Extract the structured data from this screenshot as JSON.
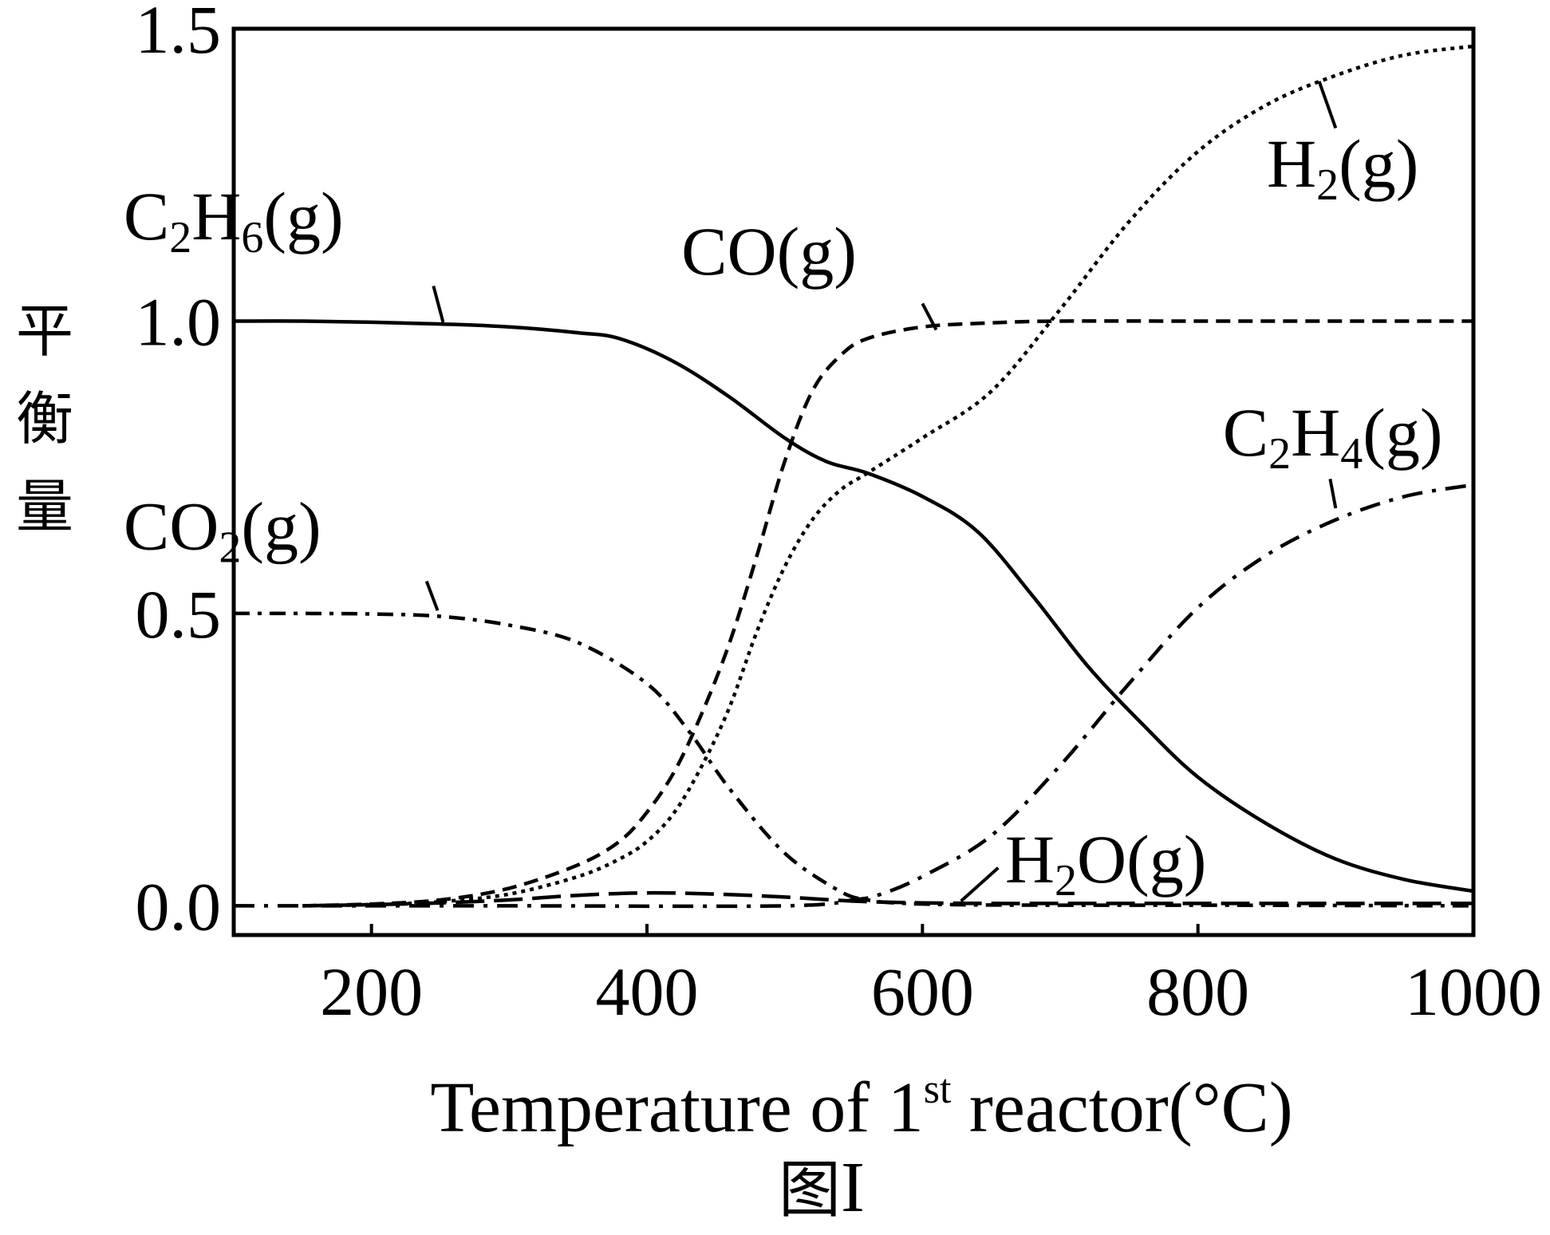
{
  "chart_data": {
    "type": "line",
    "xlabel": {
      "pre": "Temperature of 1",
      "sup": "st",
      "post": " reactor(°C)"
    },
    "ylabel": [
      "平",
      "衡",
      "量"
    ],
    "caption": {
      "han": "图",
      "roman": "I"
    },
    "xlim": [
      100,
      1000
    ],
    "ylim": [
      -0.05,
      1.5
    ],
    "xticks": [
      200,
      400,
      600,
      800,
      1000
    ],
    "yticks": [
      0.0,
      0.5,
      1.0,
      1.5
    ],
    "xtick_labels": [
      "200",
      "400",
      "600",
      "800",
      "1000"
    ],
    "ytick_labels": [
      "0.0",
      "0.5",
      "1.0",
      "1.5"
    ],
    "grid": false,
    "series": [
      {
        "name": "C₂H₆(g)",
        "label_parts": [
          [
            "C",
            ""
          ],
          [
            "2",
            "sub"
          ],
          [
            "H",
            ""
          ],
          [
            "6",
            "sub"
          ],
          [
            "(g)",
            ""
          ]
        ],
        "style": "solid",
        "label_anchor": [
          20,
          1.14
        ],
        "leader": [
          [
            245,
            1.06
          ],
          [
            252,
            0.998
          ]
        ],
        "x": [
          100,
          150,
          200,
          250,
          300,
          350,
          380,
          420,
          460,
          500,
          530,
          560,
          600,
          640,
          680,
          720,
          760,
          800,
          850,
          900,
          950,
          1000
        ],
        "y": [
          1.0,
          1.0,
          0.998,
          0.995,
          0.99,
          0.98,
          0.97,
          0.93,
          0.87,
          0.8,
          0.76,
          0.74,
          0.7,
          0.64,
          0.53,
          0.41,
          0.31,
          0.22,
          0.14,
          0.08,
          0.045,
          0.025
        ]
      },
      {
        "name": "CO(g)",
        "label_parts": [
          [
            "CO(g)",
            ""
          ]
        ],
        "style": "dashed",
        "label_anchor": [
          425,
          1.08
        ],
        "leader": [
          [
            600,
            1.03
          ],
          [
            610,
            0.985
          ]
        ],
        "x": [
          150,
          200,
          250,
          300,
          350,
          380,
          400,
          420,
          440,
          460,
          480,
          500,
          520,
          540,
          560,
          600,
          650,
          700,
          800,
          900,
          1000
        ],
        "y": [
          0.0,
          0.003,
          0.01,
          0.03,
          0.07,
          0.11,
          0.16,
          0.23,
          0.33,
          0.45,
          0.6,
          0.76,
          0.88,
          0.94,
          0.97,
          0.99,
          0.997,
          1.0,
          1.0,
          1.0,
          1.0
        ]
      },
      {
        "name": "H₂(g)",
        "label_parts": [
          [
            "H",
            ""
          ],
          [
            "2",
            "sub"
          ],
          [
            "(g)",
            ""
          ]
        ],
        "style": "dotted",
        "label_anchor": [
          850,
          1.23
        ],
        "leader": [
          [
            900,
            1.33
          ],
          [
            888,
            1.41
          ]
        ],
        "x": [
          150,
          200,
          250,
          300,
          350,
          380,
          400,
          420,
          440,
          460,
          480,
          500,
          520,
          540,
          560,
          600,
          650,
          700,
          750,
          800,
          850,
          900,
          950,
          1000
        ],
        "y": [
          0.0,
          0.002,
          0.007,
          0.02,
          0.05,
          0.08,
          0.11,
          0.16,
          0.24,
          0.34,
          0.47,
          0.58,
          0.66,
          0.71,
          0.74,
          0.8,
          0.88,
          1.02,
          1.17,
          1.29,
          1.37,
          1.42,
          1.455,
          1.47
        ]
      },
      {
        "name": "C₂H₄(g)",
        "label_parts": [
          [
            "C",
            ""
          ],
          [
            "2",
            "sub"
          ],
          [
            "H",
            ""
          ],
          [
            "4",
            "sub"
          ],
          [
            "(g)",
            ""
          ]
        ],
        "style": "dashdot",
        "label_anchor": [
          818,
          0.77
        ],
        "leader": [
          [
            896,
            0.73
          ],
          [
            900,
            0.68
          ]
        ],
        "x": [
          100,
          300,
          500,
          550,
          570,
          600,
          650,
          700,
          750,
          800,
          850,
          900,
          950,
          1000
        ],
        "y": [
          0.0,
          0.0,
          0.0,
          0.01,
          0.02,
          0.05,
          0.12,
          0.24,
          0.38,
          0.51,
          0.6,
          0.66,
          0.7,
          0.72
        ]
      },
      {
        "name": "H₂O(g)",
        "label_parts": [
          [
            "H",
            ""
          ],
          [
            "2",
            "sub"
          ],
          [
            "O(g)",
            ""
          ]
        ],
        "style": "longdash",
        "label_anchor": [
          660,
          0.04
        ],
        "leader": [
          [
            655,
            0.065
          ],
          [
            628,
            0.008
          ]
        ],
        "x": [
          150,
          200,
          250,
          300,
          350,
          400,
          450,
          500,
          550,
          600,
          650,
          700,
          800,
          1000
        ],
        "y": [
          0.0,
          0.002,
          0.005,
          0.01,
          0.018,
          0.022,
          0.02,
          0.015,
          0.008,
          0.005,
          0.004,
          0.004,
          0.004,
          0.004
        ]
      },
      {
        "name": "CO₂(g)",
        "label_parts": [
          [
            "CO",
            ""
          ],
          [
            "2",
            "sub"
          ],
          [
            "(g)",
            ""
          ]
        ],
        "style": "dashdotted",
        "label_anchor": [
          20,
          0.61
        ],
        "leader": [
          [
            240,
            0.555
          ],
          [
            248,
            0.505
          ]
        ],
        "x": [
          100,
          150,
          200,
          250,
          300,
          350,
          400,
          430,
          460,
          500,
          540,
          560,
          580,
          620,
          700,
          800,
          1000
        ],
        "y": [
          0.5,
          0.5,
          0.499,
          0.495,
          0.48,
          0.45,
          0.38,
          0.3,
          0.2,
          0.09,
          0.025,
          0.01,
          0.005,
          0.002,
          0.001,
          0.001,
          0.0
        ]
      }
    ]
  }
}
